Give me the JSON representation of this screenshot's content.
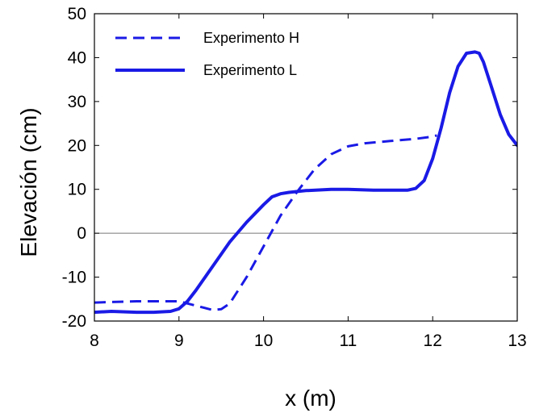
{
  "chart_data": {
    "type": "line",
    "title": "",
    "xlabel": "x (m)",
    "ylabel": "Elevación (cm)",
    "xlim": [
      8,
      13
    ],
    "ylim": [
      -20,
      50
    ],
    "xticks": [
      8,
      9,
      10,
      11,
      12,
      13
    ],
    "yticks": [
      -20,
      -10,
      0,
      10,
      20,
      30,
      40,
      50
    ],
    "xtick_labels": [
      "8",
      "9",
      "10",
      "11",
      "12",
      "13"
    ],
    "ytick_labels": [
      "-20",
      "-10",
      "0",
      "10",
      "20",
      "30",
      "40",
      "50"
    ],
    "zero_line": true,
    "grid": false,
    "legend_position": "top-left",
    "series": [
      {
        "name": "Experimento H",
        "style": "dashed",
        "color": "#1a1ae6",
        "x": [
          8.0,
          8.5,
          9.0,
          9.2,
          9.4,
          9.5,
          9.6,
          9.8,
          10.0,
          10.2,
          10.4,
          10.6,
          10.8,
          11.0,
          11.2,
          11.5,
          11.8,
          12.0,
          12.05
        ],
        "y": [
          -15.8,
          -15.5,
          -15.5,
          -16.5,
          -17.5,
          -17.3,
          -16.0,
          -10.0,
          -3.0,
          4.0,
          9.5,
          14.5,
          18.0,
          19.8,
          20.5,
          21.0,
          21.5,
          22.0,
          22.3
        ]
      },
      {
        "name": "Experimento L",
        "style": "solid",
        "color": "#1a1ae6",
        "x": [
          8.0,
          8.2,
          8.5,
          8.7,
          8.9,
          9.0,
          9.1,
          9.2,
          9.4,
          9.6,
          9.8,
          10.0,
          10.1,
          10.2,
          10.3,
          10.5,
          10.8,
          11.0,
          11.3,
          11.5,
          11.7,
          11.8,
          11.9,
          12.0,
          12.1,
          12.2,
          12.3,
          12.4,
          12.5,
          12.55,
          12.6,
          12.7,
          12.8,
          12.9,
          13.0
        ],
        "y": [
          -18.0,
          -17.8,
          -18.0,
          -18.0,
          -17.8,
          -17.2,
          -15.5,
          -13.0,
          -7.5,
          -2.0,
          2.5,
          6.5,
          8.3,
          9.0,
          9.3,
          9.7,
          10.0,
          10.0,
          9.8,
          9.8,
          9.8,
          10.2,
          12.0,
          17.0,
          24.0,
          32.0,
          38.0,
          41.0,
          41.3,
          41.0,
          39.0,
          33.0,
          27.0,
          22.5,
          20.0
        ]
      }
    ]
  }
}
